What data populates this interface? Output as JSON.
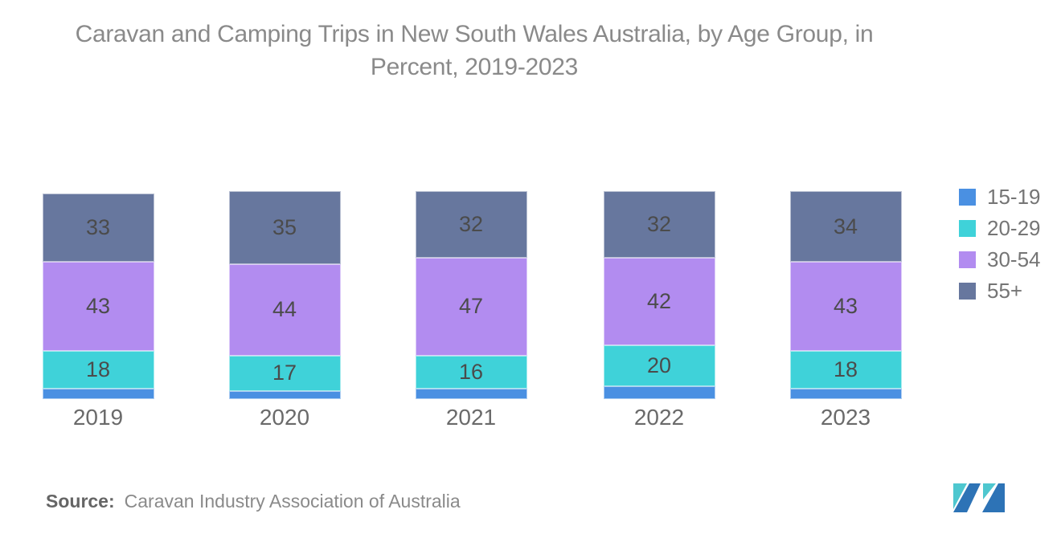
{
  "title": {
    "line1": "Caravan and Camping Trips in New South Wales Australia, by Age Group, in",
    "line2": "Percent, 2019-2023"
  },
  "source": {
    "prefix": "Source:",
    "text": "Caravan Industry Association of Australia"
  },
  "chart_data": {
    "type": "bar",
    "stacked": true,
    "title": "Caravan and Camping Trips in New South Wales Australia, by Age Group, in Percent, 2019-2023",
    "categories": [
      "2019",
      "2020",
      "2021",
      "2022",
      "2023"
    ],
    "series": [
      {
        "name": "15-19",
        "color": "#4a90e2",
        "values": [
          5,
          4,
          5,
          6,
          5
        ],
        "labels_visible": false
      },
      {
        "name": "20-29",
        "color": "#3fd2d9",
        "values": [
          18,
          17,
          16,
          20,
          18
        ],
        "labels_visible": true
      },
      {
        "name": "30-54",
        "color": "#b28cf0",
        "values": [
          43,
          44,
          47,
          42,
          43
        ],
        "labels_visible": true
      },
      {
        "name": "55+",
        "color": "#67779e",
        "values": [
          33,
          35,
          32,
          32,
          34
        ],
        "labels_visible": true
      }
    ],
    "ylim": [
      0,
      100
    ],
    "grid": false,
    "axis_lines": false,
    "legend_position": "right",
    "value_unit": "percent"
  },
  "colors": {
    "title_text": "#8a8a8a",
    "segment_label_text": "#4b4b4b",
    "year_label_text": "#6a6a6a",
    "legend_text": "#757575"
  },
  "logo": {
    "name": "mordor-intelligence-logo",
    "teal": "#4ec7cf",
    "blue": "#2d73b6"
  }
}
